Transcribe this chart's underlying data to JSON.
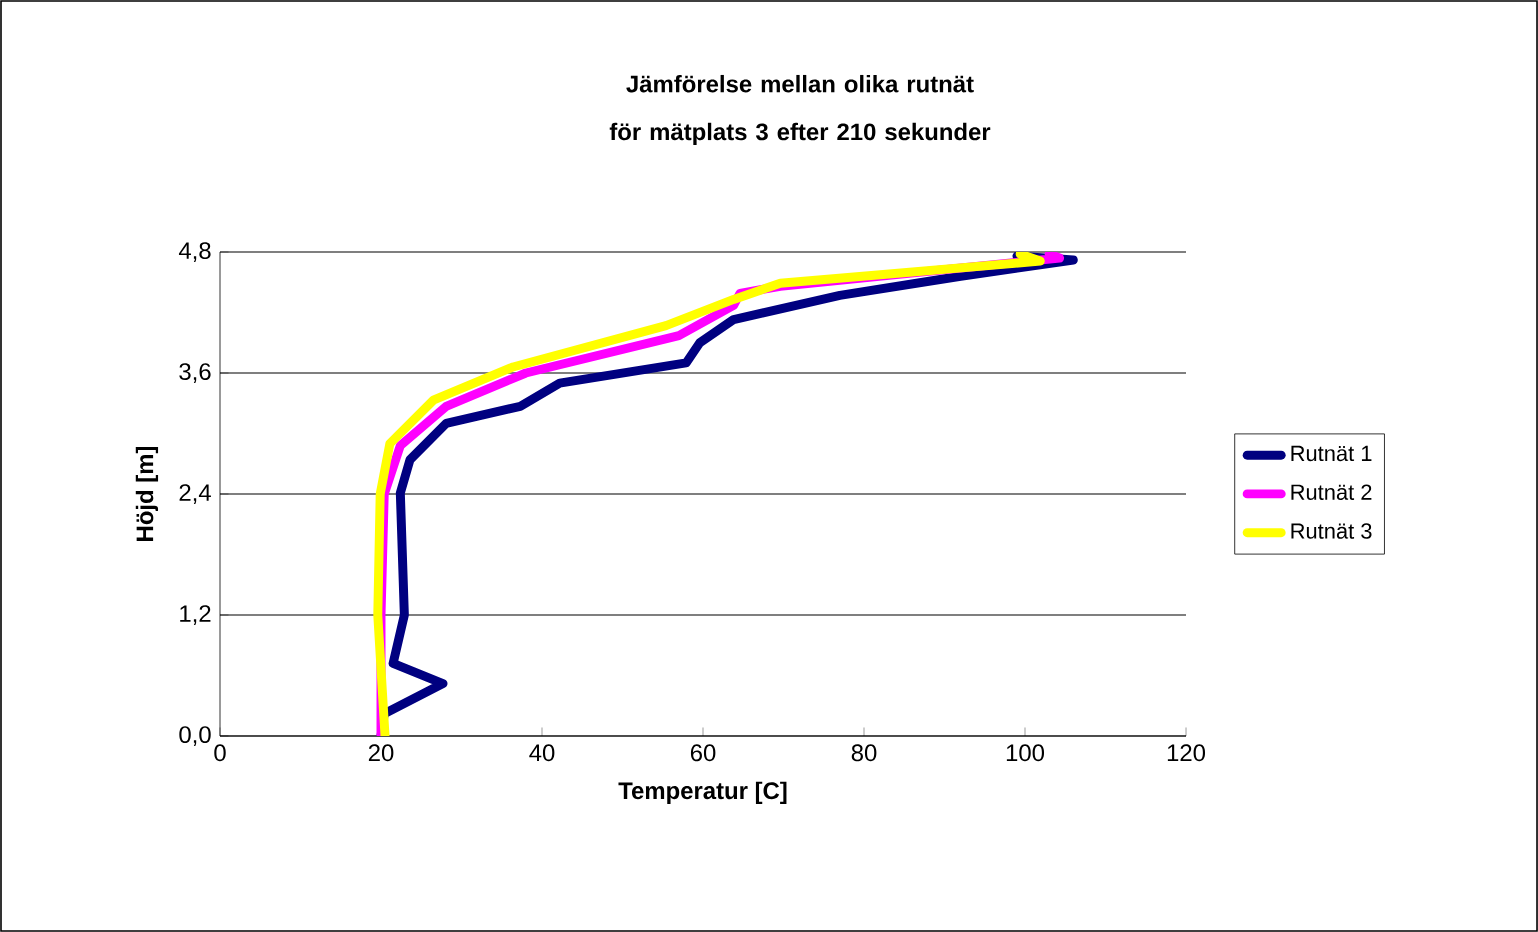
{
  "chart_data": {
    "type": "line",
    "title": "Jämförelse mellan olika rutnät för mätplats 3 efter 210 sekunder",
    "xlabel": "Temperatur [C]",
    "ylabel": "Höjd [m]",
    "xlim": [
      0,
      120
    ],
    "xticks": [
      0,
      20,
      40,
      60,
      80,
      100,
      120
    ],
    "ylim": [
      0,
      4.8
    ],
    "yticks": [
      {
        "value": 0,
        "label": "0,0"
      },
      {
        "value": 1.2,
        "label": "1,2"
      },
      {
        "value": 2.4,
        "label": "2,4"
      },
      {
        "value": 3.6,
        "label": "3,6"
      },
      {
        "value": 4.8,
        "label": "4,8"
      }
    ],
    "grid": "y",
    "legend": "right",
    "marker": "none",
    "line_style": "solid",
    "series": [
      {
        "name": "Rutnät 1",
        "color": "#000080",
        "x": [
          20,
          20.4,
          27.7,
          21.5,
          22.9,
          22.4,
          23.6,
          28.1,
          37.3,
          42.2,
          57.9,
          59.6,
          63.8,
          77,
          92,
          106,
          99
        ],
        "values": [
          0,
          0.22,
          0.52,
          0.72,
          1.2,
          2.41,
          2.74,
          3.1,
          3.27,
          3.5,
          3.7,
          3.9,
          4.13,
          4.37,
          4.56,
          4.72,
          4.76
        ]
      },
      {
        "name": "Rutnät 2",
        "color": "#ff00ff",
        "x": [
          20,
          20,
          20.4,
          22.4,
          28.1,
          38,
          57,
          63.8,
          64.6,
          69.6,
          104.3,
          103
        ],
        "values": [
          0,
          1.2,
          2.4,
          2.88,
          3.27,
          3.6,
          3.97,
          4.27,
          4.39,
          4.46,
          4.74,
          4.78
        ]
      },
      {
        "name": "Rutnät 3",
        "color": "#ffff00",
        "x": [
          20.5,
          19.6,
          19.9,
          21.1,
          26.5,
          36.4,
          55.4,
          63.8,
          69.6,
          101.9,
          99.4
        ],
        "values": [
          0,
          1.2,
          2.4,
          2.9,
          3.33,
          3.66,
          4.07,
          4.33,
          4.49,
          4.71,
          4.78
        ]
      }
    ]
  }
}
